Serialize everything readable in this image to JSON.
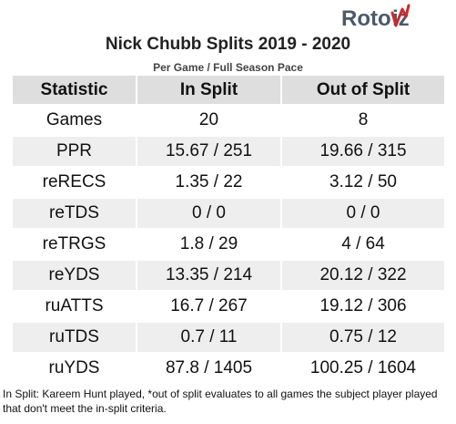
{
  "logo": {
    "text_roto": "Roto",
    "text_viz": "Viz",
    "color_dark": "#4a5a6a",
    "color_accent": "#cc2a2a"
  },
  "header": {
    "title": "Nick Chubb Splits 2019 - 2020",
    "subtitle": "Per Game / Full Season Pace"
  },
  "table": {
    "columns": [
      "Statistic",
      "In Split",
      "Out of Split"
    ],
    "rows": [
      [
        "Games",
        "20",
        "8"
      ],
      [
        "PPR",
        "15.67 / 251",
        "19.66 / 315"
      ],
      [
        "reRECS",
        "1.35 / 22",
        "3.12 / 50"
      ],
      [
        "reTDS",
        "0 / 0",
        "0 / 0"
      ],
      [
        "reTRGS",
        "1.8 / 29",
        "4 / 64"
      ],
      [
        "reYDS",
        "13.35 / 214",
        "20.12 / 322"
      ],
      [
        "ruATTS",
        "16.7 / 267",
        "19.12 / 306"
      ],
      [
        "ruTDS",
        "0.7 / 11",
        "0.75 / 12"
      ],
      [
        "ruYDS",
        "87.8 / 1405",
        "100.25 / 1604"
      ]
    ]
  },
  "footnote": "In Split: Kareem Hunt played,  *out of split evaluates to all games the subject player played that don't meet the in-split criteria."
}
